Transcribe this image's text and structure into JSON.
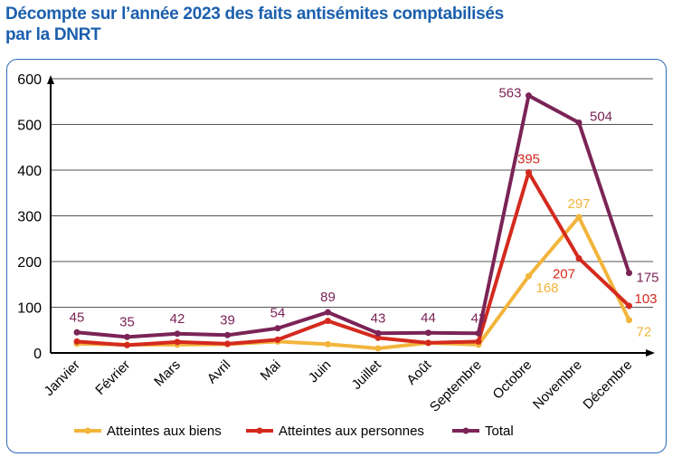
{
  "title_line1": "Décompte sur l’année 2023 des faits antisémites comptabilisés",
  "title_line2": "par la DNRT",
  "chart_data": {
    "type": "line",
    "title": "Décompte sur l’année 2023 des faits antisémites comptabilisés par la DNRT",
    "categories": [
      "Janvier",
      "Février",
      "Mars",
      "Avril",
      "Mai",
      "Juin",
      "Juillet",
      "Août",
      "Septembre",
      "Octobre",
      "Novembre",
      "Décembre"
    ],
    "ylim": [
      0,
      600
    ],
    "yticks": [
      0,
      100,
      200,
      300,
      400,
      500,
      600
    ],
    "grid": true,
    "legend": "bottom",
    "series": [
      {
        "name": "Atteintes aux biens",
        "color": "#f2b53c",
        "values": [
          20,
          18,
          18,
          19,
          25,
          19,
          10,
          22,
          18,
          168,
          297,
          72
        ],
        "labeled": [
          false,
          false,
          false,
          false,
          false,
          false,
          false,
          false,
          false,
          true,
          true,
          true
        ]
      },
      {
        "name": "Atteintes aux personnes",
        "color": "#d42a1e",
        "values": [
          25,
          17,
          24,
          20,
          29,
          70,
          33,
          22,
          25,
          395,
          207,
          103
        ],
        "labeled": [
          false,
          false,
          false,
          false,
          false,
          false,
          false,
          false,
          false,
          true,
          true,
          true
        ]
      },
      {
        "name": "Total",
        "color": "#7b2457",
        "values": [
          45,
          35,
          42,
          39,
          54,
          89,
          43,
          44,
          43,
          563,
          504,
          175
        ],
        "labeled": [
          true,
          true,
          true,
          true,
          true,
          true,
          true,
          true,
          true,
          true,
          true,
          true
        ]
      }
    ]
  }
}
